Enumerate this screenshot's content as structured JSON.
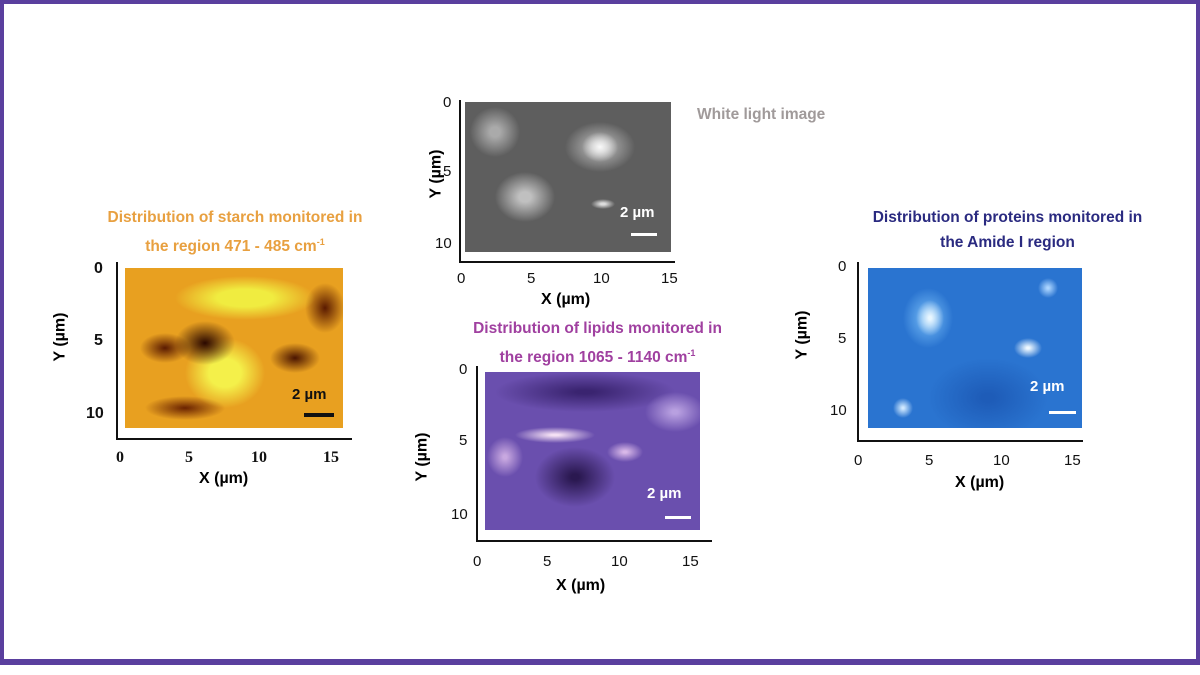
{
  "panels": {
    "white_light": {
      "title": "White light image",
      "title_color": "#a09a9a",
      "xlabel": "X (µm)",
      "ylabel": "Y (µm)",
      "xticks": [
        "0",
        "5",
        "10",
        "15"
      ],
      "yticks": [
        "0",
        "5",
        "10"
      ],
      "scale_bar": "2 µm",
      "scale_bar_color": "#ffffff",
      "colormap": "grayscale"
    },
    "starch": {
      "title_line1": "Distribution of starch monitored in",
      "title_line2": "the region 471 - 485 cm",
      "title_sup": "-1",
      "title_color": "#e8a040",
      "xlabel": "X (µm)",
      "ylabel": "Y (µm)",
      "xticks": [
        "0",
        "5",
        "10",
        "15"
      ],
      "yticks": [
        "0",
        "5",
        "10"
      ],
      "scale_bar": "2 µm",
      "scale_bar_color": "#111111",
      "colormap": "dark brown to yellow"
    },
    "lipids": {
      "title_line1": "Distribution of lipids monitored in",
      "title_line2": "the region 1065 - 1140 cm",
      "title_sup": "-1",
      "title_color": "#a040a0",
      "xlabel": "X (µm)",
      "ylabel": "Y (µm)",
      "xticks": [
        "0",
        "5",
        "10",
        "15"
      ],
      "yticks": [
        "0",
        "5",
        "10"
      ],
      "scale_bar": "2 µm",
      "scale_bar_color": "#ffffff",
      "colormap": "dark purple to pink-white"
    },
    "proteins": {
      "title_line1": "Distribution of proteins monitored in",
      "title_line2": "the Amide I region",
      "title_color": "#2a2a80",
      "xlabel": "X (µm)",
      "ylabel": "Y (µm)",
      "xticks": [
        "0",
        "5",
        "10",
        "15"
      ],
      "yticks": [
        "0",
        "5",
        "10"
      ],
      "scale_bar": "2 µm",
      "scale_bar_color": "#ffffff",
      "colormap": "dark blue to white"
    }
  },
  "frame_color": "#5a3f9e"
}
